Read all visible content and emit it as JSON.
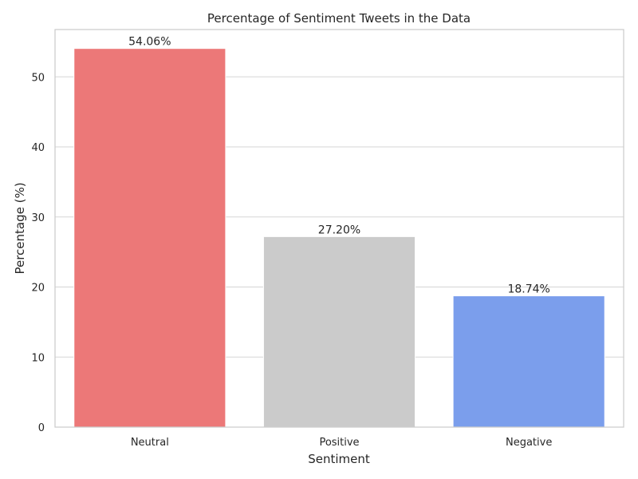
{
  "chart_data": {
    "type": "bar",
    "title": "Percentage of Sentiment Tweets in the Data",
    "xlabel": "Sentiment",
    "ylabel": "Percentage (%)",
    "categories": [
      "Neutral",
      "Positive",
      "Negative"
    ],
    "values": [
      54.06,
      27.2,
      18.74
    ],
    "data_labels": [
      "54.06%",
      "27.20%",
      "18.74%"
    ],
    "colors": [
      "#ec7878",
      "#cbcbcb",
      "#7b9eec"
    ],
    "ylim": [
      0,
      56.76
    ],
    "yticks": [
      0,
      10,
      20,
      30,
      40,
      50
    ],
    "grid": "horizontal",
    "legend": "none"
  }
}
